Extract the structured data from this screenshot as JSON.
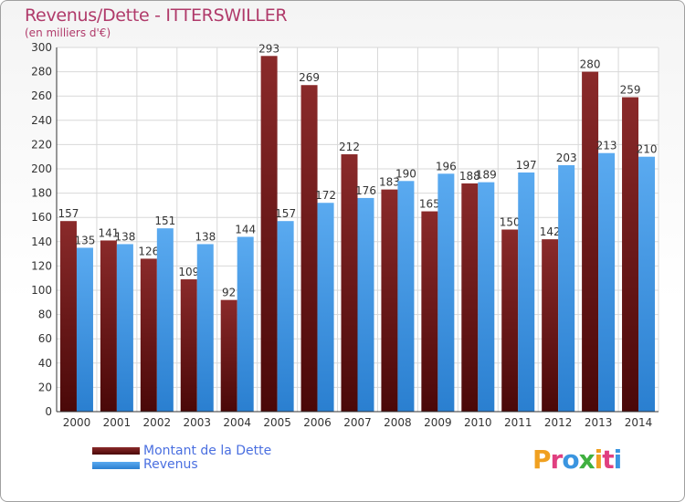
{
  "chart_data": {
    "type": "bar",
    "title": "Revenus/Dette - ITTERSWILLER",
    "subtitle": "(en milliers d'€)",
    "categories": [
      "2000",
      "2001",
      "2002",
      "2003",
      "2004",
      "2005",
      "2006",
      "2007",
      "2008",
      "2009",
      "2010",
      "2011",
      "2012",
      "2013",
      "2014"
    ],
    "series": [
      {
        "name": "Montant de la Dette",
        "color": "#7a1e1e",
        "values": [
          157,
          141,
          126,
          109,
          92,
          293,
          269,
          212,
          183,
          165,
          188,
          150,
          142,
          280,
          259
        ]
      },
      {
        "name": "Revenus",
        "color": "#3a95e0",
        "values": [
          135,
          138,
          151,
          138,
          144,
          157,
          172,
          176,
          190,
          196,
          189,
          197,
          203,
          213,
          210
        ]
      }
    ],
    "ylim": [
      0,
      300
    ],
    "yticks": [
      0,
      20,
      40,
      60,
      80,
      100,
      120,
      140,
      160,
      180,
      200,
      220,
      240,
      260,
      280,
      300
    ],
    "grid": true,
    "legend_position": "bottom-left"
  },
  "logo": {
    "letters": [
      "P",
      "r",
      "o",
      "x",
      "i",
      "t",
      "i"
    ],
    "colors": [
      "#f0a020",
      "#e04080",
      "#3a95e0",
      "#40b040",
      "#f0a020",
      "#e04080",
      "#3a95e0"
    ]
  }
}
